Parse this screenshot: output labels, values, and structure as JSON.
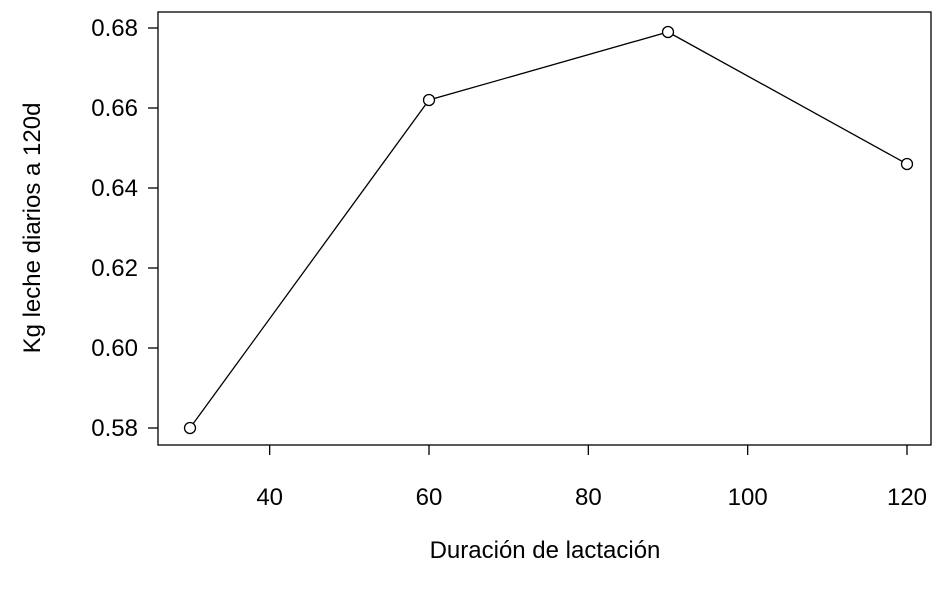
{
  "chart_data": {
    "type": "line",
    "title": "",
    "xlabel": "Duración de lactación",
    "ylabel": "Kg leche diarios a 120d",
    "x": [
      30,
      60,
      90,
      120
    ],
    "series": [
      {
        "values": [
          0.58,
          0.662,
          0.679,
          0.646
        ]
      }
    ],
    "xlim": [
      30,
      120
    ],
    "ylim": [
      0.58,
      0.68
    ],
    "xticks": [
      40,
      60,
      80,
      100,
      120
    ],
    "xtick_labels": [
      "40",
      "60",
      "80",
      "100",
      "120"
    ],
    "yticks": [
      0.58,
      0.6,
      0.62,
      0.64,
      0.66,
      0.68
    ],
    "ytick_labels": [
      "0.58",
      "0.60",
      "0.62",
      "0.64",
      "0.66",
      "0.68"
    ],
    "marker": "open-circle",
    "line_color": "#000000",
    "grid": false,
    "legend": "none"
  }
}
